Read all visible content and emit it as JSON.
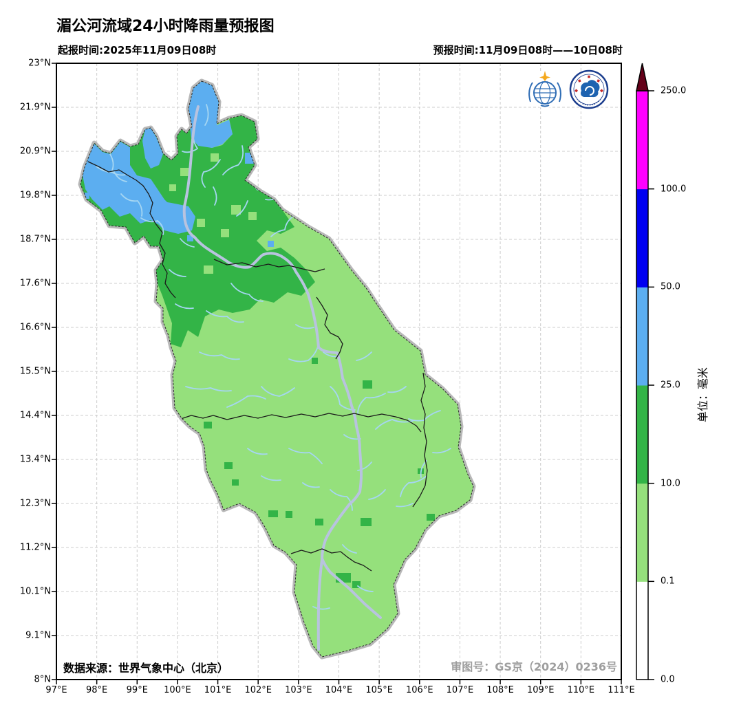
{
  "title": "湄公河流域24小时降雨量预报图",
  "init_time_label": "起报时间:2025年11月09日08时",
  "forecast_time_label": "预报时间:11月09日08时——10日08时",
  "footer": {
    "data_source": "数据来源：世界气象中心（北京）",
    "map_approval_number": "审图号：GS京（2024）0236号"
  },
  "logos": {
    "left": "wmo-logo",
    "right": "cma-logo"
  },
  "axes": {
    "x_ticks": [
      "97°E",
      "98°E",
      "99°E",
      "100°E",
      "101°E",
      "102°E",
      "103°E",
      "104°E",
      "105°E",
      "106°E",
      "107°E",
      "108°E",
      "109°E",
      "110°E",
      "111°E"
    ],
    "y_ticks": [
      "23°N",
      "21.9°N",
      "20.9°N",
      "19.8°N",
      "18.7°N",
      "17.6°N",
      "16.6°N",
      "15.5°N",
      "14.4°N",
      "13.4°N",
      "12.3°N",
      "11.2°N",
      "10.1°N",
      "9.1°N",
      "8°N"
    ]
  },
  "colorbar": {
    "unit_label": "单位：毫米",
    "tick_values": [
      "250.0",
      "100.0",
      "50.0",
      "25.0",
      "10.0",
      "0.1",
      "0.0"
    ],
    "segments_bottom_to_top": [
      {
        "range_mm": "0.0-0.1",
        "color": "#ffffff"
      },
      {
        "range_mm": "0.1-10.0",
        "color": "#95e07c"
      },
      {
        "range_mm": "10.0-25.0",
        "color": "#33b447"
      },
      {
        "range_mm": "25.0-50.0",
        "color": "#5caef0"
      },
      {
        "range_mm": "50.0-100.0",
        "color": "#0000f0"
      },
      {
        "range_mm": "100.0-250.0",
        "color": "#ff00ff"
      }
    ],
    "overflow_color": "#640019"
  },
  "map_colors": {
    "rain_light_green": "#95e07c",
    "rain_green": "#33b447",
    "rain_blue": "#5caef0",
    "river": "#a5d6f2",
    "mainstream": "#b8c3df",
    "basin_outline": "#b8b8b8",
    "country_border": "#1a1a1a",
    "grid": "#cccccc"
  }
}
